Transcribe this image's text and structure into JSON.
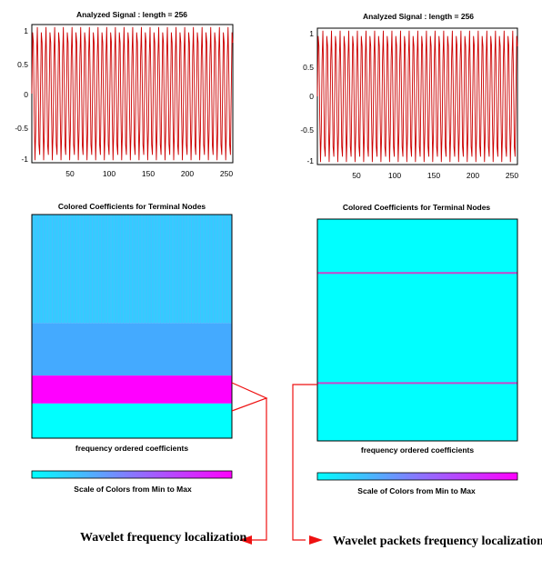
{
  "chart_data": [
    {
      "type": "line",
      "title": "Analyzed Signal : length = 256",
      "length": 256,
      "xlim": [
        1,
        256
      ],
      "ylim": [
        -1,
        1
      ],
      "xticks": [
        "50",
        "100",
        "150",
        "200",
        "250"
      ],
      "yticks": [
        "1",
        "0.5",
        "0",
        "-0.5",
        "-1"
      ],
      "series": [
        {
          "color": "#cc0000",
          "form": "sinusoid, period approx. 5.5 samples, amplitude 1"
        }
      ]
    },
    {
      "type": "line",
      "title": "Analyzed Signal : length = 256",
      "length": 256,
      "xlim": [
        1,
        256
      ],
      "ylim": [
        -1,
        1
      ],
      "xticks": [
        "50",
        "100",
        "150",
        "200",
        "250"
      ],
      "yticks": [
        "1",
        "0.5",
        "0",
        "-0.5",
        "-1"
      ],
      "series": [
        {
          "color": "#cc0000",
          "form": "sinusoid, period approx. 5.5 samples, amplitude 1"
        }
      ]
    },
    {
      "type": "heatmap",
      "title": "Colored Coefficients for Terminal Nodes",
      "xlabel": "frequency ordered coefficients",
      "bands_top_to_bottom": [
        {
          "fraction": 0.485,
          "color": "#33ccff",
          "pattern": "vertical striping"
        },
        {
          "fraction": 0.235,
          "color": "#44aaff"
        },
        {
          "fraction": 0.125,
          "color": "#ff00ff"
        },
        {
          "fraction": 0.155,
          "color": "#00ffff"
        }
      ]
    },
    {
      "type": "heatmap",
      "title": "Colored Coefficients for Terminal Nodes",
      "xlabel": "frequency ordered coefficients",
      "background": "#00ffff",
      "lines_at_fraction_from_top": [
        0.243,
        0.739
      ],
      "line_color": "#cc44cc"
    }
  ],
  "colorbars": [
    {
      "label": "Scale of Colors from Min to Max",
      "from": "#00ffff",
      "to": "#ff00ff"
    },
    {
      "label": "Scale of Colors from Min to Max",
      "from": "#00ffff",
      "to": "#ff00ff"
    }
  ],
  "annotations": {
    "left": "Wavelet frequency localization",
    "right": "Wavelet packets frequency localization",
    "arrow_color": "#ee1111"
  }
}
